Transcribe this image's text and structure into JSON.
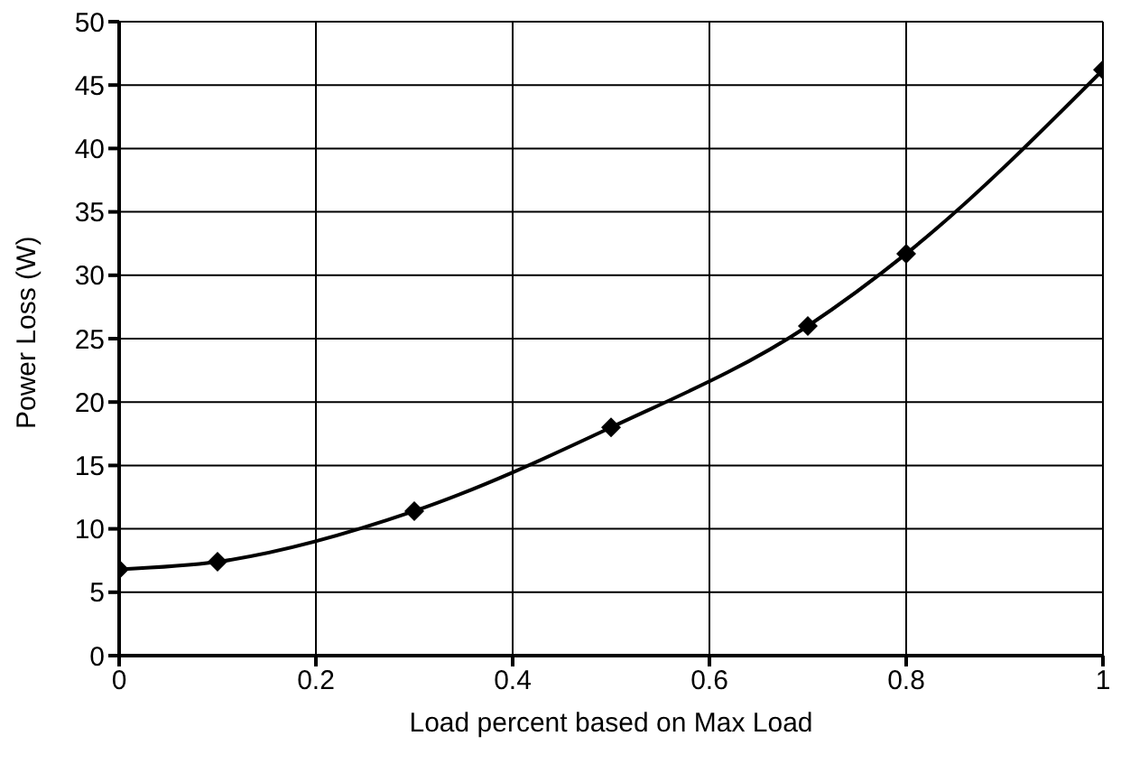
{
  "chart_data": {
    "type": "line",
    "xlabel": "Load percent based on Max Load",
    "ylabel": "Power Loss (W)",
    "x": [
      0,
      0.1,
      0.3,
      0.5,
      0.7,
      0.8,
      1
    ],
    "series": [
      {
        "color": "#000000",
        "values": [
          6.8,
          7.4,
          11.4,
          18,
          26,
          31.7,
          46.2
        ]
      }
    ],
    "xlim": [
      0,
      1
    ],
    "xticks": [
      0,
      0.2,
      0.4,
      0.6,
      0.8,
      1
    ],
    "ylim": [
      0,
      50
    ],
    "yticks": [
      0,
      5,
      10,
      15,
      20,
      25,
      30,
      35,
      40,
      45,
      50
    ],
    "grid": true,
    "marker": "diamond",
    "line_style": "solid"
  }
}
